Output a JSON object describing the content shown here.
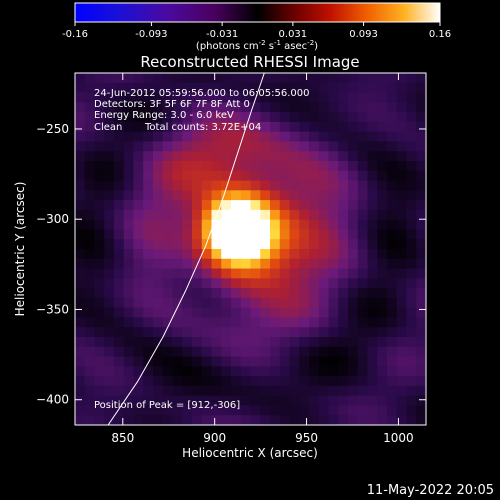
{
  "colorbar": {
    "ticks": [
      {
        "label": "-0.16",
        "value": -0.16
      },
      {
        "label": "-0.093",
        "value": -0.093
      },
      {
        "label": "-0.031",
        "value": -0.031
      },
      {
        "label": "0.031",
        "value": 0.031
      },
      {
        "label": "0.093",
        "value": 0.093
      },
      {
        "label": "0.16",
        "value": 0.16
      }
    ],
    "unit_parts": [
      "(photons cm",
      "-2",
      " s",
      "-1",
      " asec",
      "-2",
      ")"
    ],
    "range": [
      -0.16,
      0.16
    ]
  },
  "image_info": {
    "time_range": "24-Jun-2012 05:59:56.000 to 06:05:56.000",
    "detectors": "Detectors: 3F 5F 6F 7F 8F Att 0",
    "energy": "Energy Range: 3.0 - 6.0 keV",
    "clean_label": "Clean",
    "total_counts": "Total counts: 3.72E+04",
    "peak": "Position of Peak = [912,-306]"
  },
  "footer_date": "11-May-2022 20:05",
  "chart_data": {
    "type": "heatmap",
    "title": "Reconstructed RHESSI Image",
    "xlabel": "Heliocentric X (arcsec)",
    "ylabel": "Heliocentric Y (arcsec)",
    "xlim": [
      824,
      1015
    ],
    "ylim": [
      -414,
      -219
    ],
    "xticks": [
      850,
      900,
      950,
      1000
    ],
    "yticks": [
      -250,
      -300,
      -350,
      -400
    ],
    "peak_position": [
      912,
      -306
    ],
    "colormap": [
      "#000000",
      "#2a0a4a",
      "#6a1a7a",
      "#b02030",
      "#e04810",
      "#f89010",
      "#ffe040",
      "#ffffff"
    ],
    "sources": [
      {
        "x": 912,
        "y": -306,
        "amplitude": 0.16,
        "sigma": 11
      },
      {
        "x": 925,
        "y": -315,
        "amplitude": 0.08,
        "sigma": 24
      },
      {
        "x": 908,
        "y": -285,
        "amplitude": 0.05,
        "sigma": 30
      }
    ],
    "limb_curve": {
      "x": [
        842,
        858,
        872,
        884,
        895,
        904,
        912,
        920,
        927,
        933,
        936
      ],
      "y": [
        -414,
        -390,
        -365,
        -340,
        -315,
        -290,
        -265,
        -240,
        -219,
        -200,
        -190
      ]
    }
  }
}
